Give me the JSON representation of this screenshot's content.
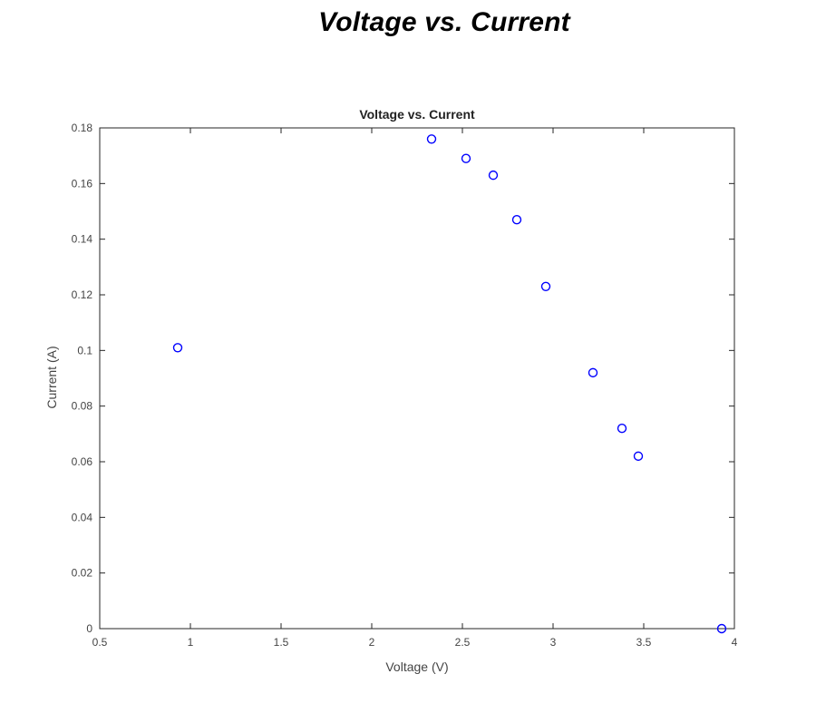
{
  "page": {
    "heading": "Voltage vs. Current"
  },
  "chart_data": {
    "type": "scatter",
    "title": "Voltage vs. Current",
    "xlabel": "Voltage (V)",
    "ylabel": "Current (A)",
    "xlim": [
      0.5,
      4
    ],
    "ylim": [
      0,
      0.18
    ],
    "xticks": [
      "0.5",
      "1",
      "1.5",
      "2",
      "2.5",
      "3",
      "3.5",
      "4"
    ],
    "yticks": [
      "0",
      "0.02",
      "0.04",
      "0.06",
      "0.08",
      "0.1",
      "0.12",
      "0.14",
      "0.16",
      "0.18"
    ],
    "grid": false,
    "marker": "open-circle",
    "color": "#0000ff",
    "points": [
      {
        "x": 0.93,
        "y": 0.101
      },
      {
        "x": 2.33,
        "y": 0.176
      },
      {
        "x": 2.52,
        "y": 0.169
      },
      {
        "x": 2.67,
        "y": 0.163
      },
      {
        "x": 2.8,
        "y": 0.147
      },
      {
        "x": 2.96,
        "y": 0.123
      },
      {
        "x": 3.22,
        "y": 0.092
      },
      {
        "x": 3.38,
        "y": 0.072
      },
      {
        "x": 3.47,
        "y": 0.062
      },
      {
        "x": 3.93,
        "y": 0.0
      }
    ]
  }
}
